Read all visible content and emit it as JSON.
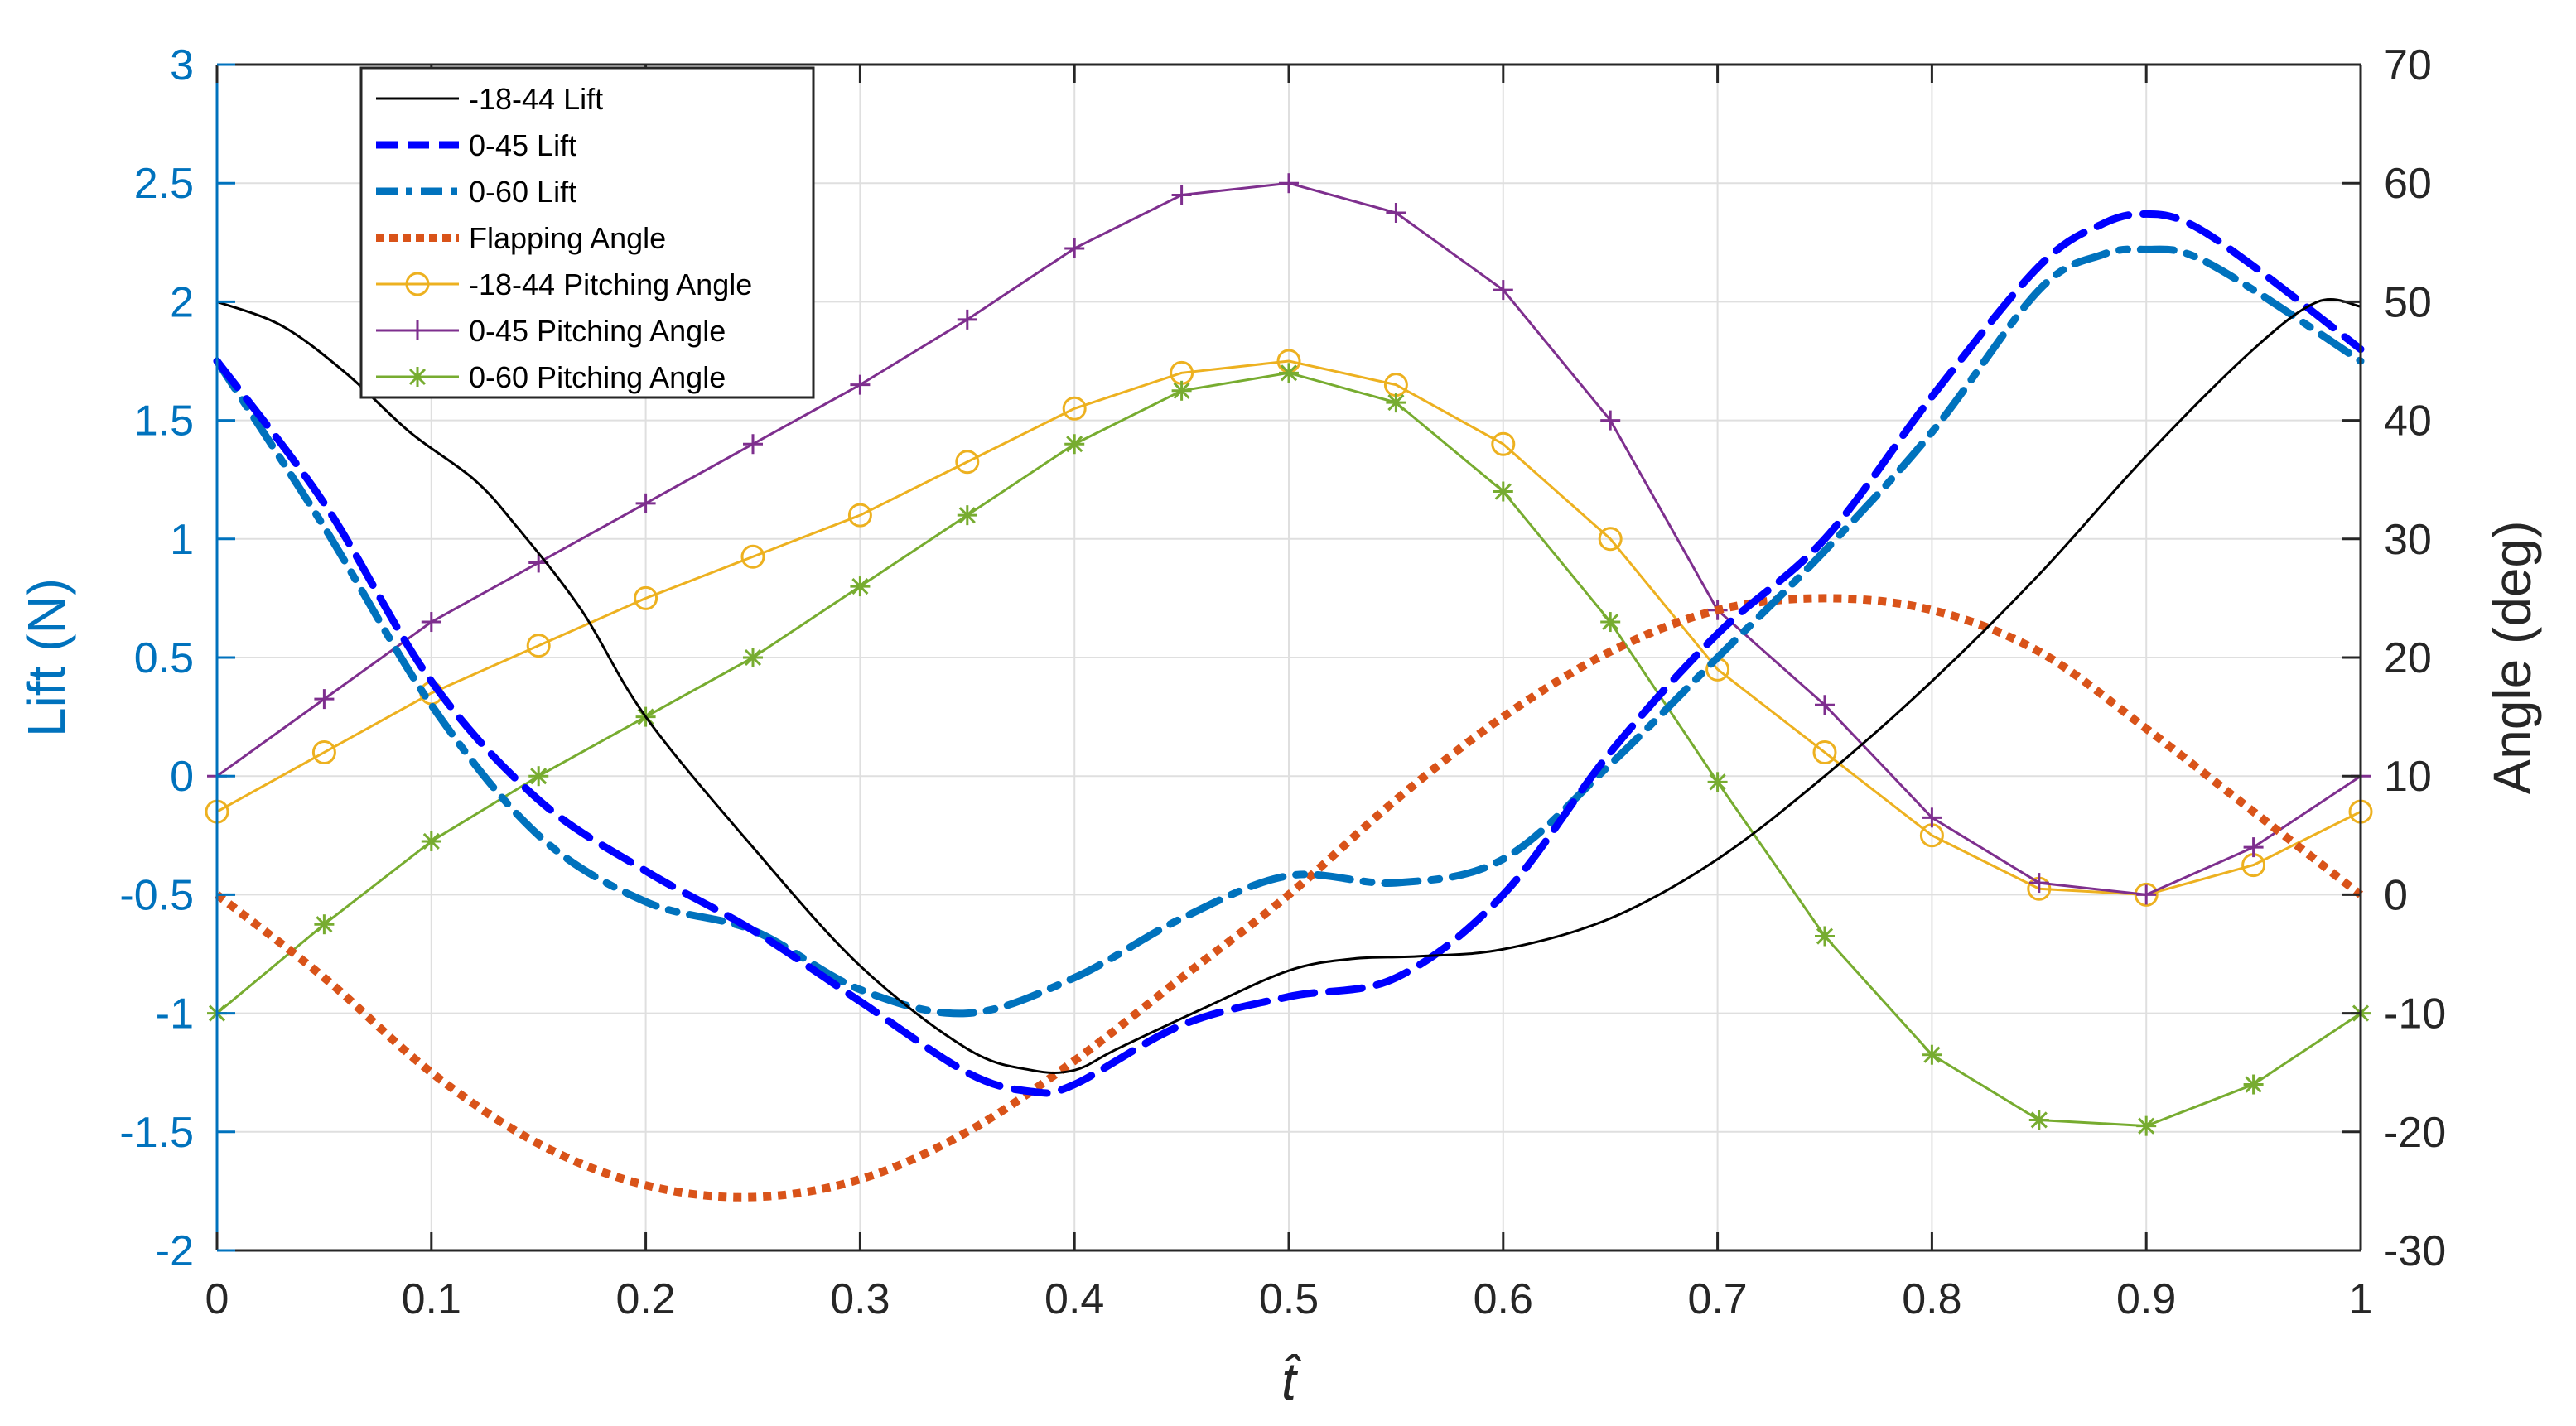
{
  "chart_data": {
    "type": "line",
    "title": "",
    "xlabel": "t̂",
    "ylabel_left": "Lift (N)",
    "ylabel_right": "Angle (deg)",
    "xlim": [
      0,
      1
    ],
    "ylim_left": [
      -2,
      3
    ],
    "ylim_right": [
      -30,
      70
    ],
    "grid": true,
    "legend_position": "top-left",
    "x_ticks": [
      "0",
      "0.1",
      "0.2",
      "0.3",
      "0.4",
      "0.5",
      "0.6",
      "0.7",
      "0.8",
      "0.9",
      "1"
    ],
    "y_left_ticks": [
      "-2",
      "-1.5",
      "-1",
      "-0.5",
      "0",
      "0.5",
      "1",
      "1.5",
      "2",
      "2.5",
      "3"
    ],
    "y_right_ticks": [
      "-30",
      "-20",
      "-10",
      "0",
      "10",
      "20",
      "30",
      "40",
      "50",
      "60",
      "70"
    ],
    "colors": {
      "left_axis": "#0072BD",
      "right_axis": "#262626",
      "grid": "#DFDFDF"
    },
    "series": [
      {
        "name": "-18-44 Lift",
        "axis": "left",
        "color": "#000000",
        "style": "solid",
        "marker": "",
        "x": [
          0,
          0.03,
          0.06,
          0.09,
          0.12,
          0.14,
          0.17,
          0.2,
          0.25,
          0.3,
          0.35,
          0.38,
          0.4,
          0.42,
          0.46,
          0.5,
          0.53,
          0.56,
          0.6,
          0.65,
          0.7,
          0.75,
          0.8,
          0.85,
          0.9,
          0.95,
          0.98,
          1
        ],
        "y": [
          2,
          1.9,
          1.7,
          1.45,
          1.25,
          1.05,
          0.7,
          0.25,
          -0.3,
          -0.8,
          -1.15,
          -1.24,
          -1.24,
          -1.15,
          -0.98,
          -0.82,
          -0.77,
          -0.76,
          -0.73,
          -0.6,
          -0.35,
          0,
          0.4,
          0.85,
          1.35,
          1.8,
          2,
          1.98
        ]
      },
      {
        "name": "0-45 Lift",
        "axis": "left",
        "color": "#0000FF",
        "style": "dashed",
        "marker": "",
        "x": [
          0,
          0.05,
          0.1,
          0.15,
          0.2,
          0.25,
          0.3,
          0.35,
          0.38,
          0.4,
          0.45,
          0.5,
          0.55,
          0.6,
          0.65,
          0.7,
          0.75,
          0.8,
          0.85,
          0.88,
          0.9,
          0.92,
          0.95,
          1
        ],
        "y": [
          1.75,
          1.15,
          0.4,
          -0.1,
          -0.4,
          -0.65,
          -0.95,
          -1.25,
          -1.33,
          -1.3,
          -1.05,
          -0.93,
          -0.85,
          -0.5,
          0.1,
          0.6,
          1.0,
          1.6,
          2.15,
          2.33,
          2.37,
          2.33,
          2.15,
          1.8
        ]
      },
      {
        "name": "0-60 Lift",
        "axis": "left",
        "color": "#0072BD",
        "style": "dashdot",
        "marker": "",
        "x": [
          0,
          0.05,
          0.1,
          0.15,
          0.2,
          0.25,
          0.3,
          0.35,
          0.4,
          0.45,
          0.5,
          0.55,
          0.6,
          0.65,
          0.7,
          0.75,
          0.8,
          0.85,
          0.88,
          0.9,
          0.92,
          0.95,
          1
        ],
        "y": [
          1.75,
          1.05,
          0.3,
          -0.25,
          -0.53,
          -0.65,
          -0.9,
          -1.0,
          -0.85,
          -0.6,
          -0.42,
          -0.45,
          -0.35,
          0.05,
          0.5,
          0.95,
          1.45,
          2.05,
          2.2,
          2.22,
          2.2,
          2.05,
          1.75
        ]
      },
      {
        "name": "Flapping Angle",
        "axis": "right",
        "color": "#D95319",
        "style": "dotted",
        "marker": "",
        "x": [
          0,
          0.05,
          0.1,
          0.15,
          0.2,
          0.25,
          0.3,
          0.35,
          0.4,
          0.45,
          0.5,
          0.55,
          0.6,
          0.65,
          0.7,
          0.75,
          0.8,
          0.85,
          0.9,
          0.95,
          1
        ],
        "y": [
          0,
          -7,
          -15,
          -21,
          -24.5,
          -25.5,
          -24,
          -20,
          -14,
          -7,
          0,
          8,
          15,
          20.5,
          24,
          25,
          24,
          20.5,
          14,
          7,
          0
        ]
      },
      {
        "name": "-18-44 Pitching Angle",
        "axis": "right",
        "color": "#EDB120",
        "style": "solid",
        "marker": "o",
        "x": [
          0,
          0.05,
          0.1,
          0.15,
          0.2,
          0.25,
          0.3,
          0.35,
          0.4,
          0.45,
          0.5,
          0.55,
          0.6,
          0.65,
          0.7,
          0.75,
          0.8,
          0.85,
          0.9,
          0.95,
          1
        ],
        "y": [
          7,
          12,
          17,
          21,
          25,
          28.5,
          32,
          36.5,
          41,
          44,
          45,
          43,
          38,
          30,
          19,
          12,
          5,
          0.5,
          0,
          2.5,
          7
        ]
      },
      {
        "name": "0-45 Pitching Angle",
        "axis": "right",
        "color": "#7E2F8E",
        "style": "solid",
        "marker": "+",
        "x": [
          0,
          0.05,
          0.1,
          0.15,
          0.2,
          0.25,
          0.3,
          0.35,
          0.4,
          0.45,
          0.5,
          0.55,
          0.6,
          0.65,
          0.7,
          0.75,
          0.8,
          0.85,
          0.9,
          0.95,
          1
        ],
        "y": [
          10,
          16.5,
          23,
          28,
          33,
          38,
          43,
          48.5,
          54.5,
          59,
          60,
          57.5,
          51,
          40,
          24,
          16,
          6.5,
          1,
          0,
          4,
          10
        ]
      },
      {
        "name": "0-60 Pitching Angle",
        "axis": "right",
        "color": "#77AC30",
        "style": "solid",
        "marker": "*",
        "x": [
          0,
          0.05,
          0.1,
          0.15,
          0.2,
          0.25,
          0.3,
          0.35,
          0.4,
          0.45,
          0.5,
          0.55,
          0.6,
          0.65,
          0.7,
          0.75,
          0.8,
          0.85,
          0.9,
          0.95,
          1
        ],
        "y": [
          -10,
          -2.5,
          4.5,
          10,
          15,
          20,
          26,
          32,
          38,
          42.5,
          44,
          41.5,
          34,
          23,
          9.5,
          -3.5,
          -13.5,
          -19,
          -19.5,
          -16,
          -10
        ]
      }
    ]
  }
}
